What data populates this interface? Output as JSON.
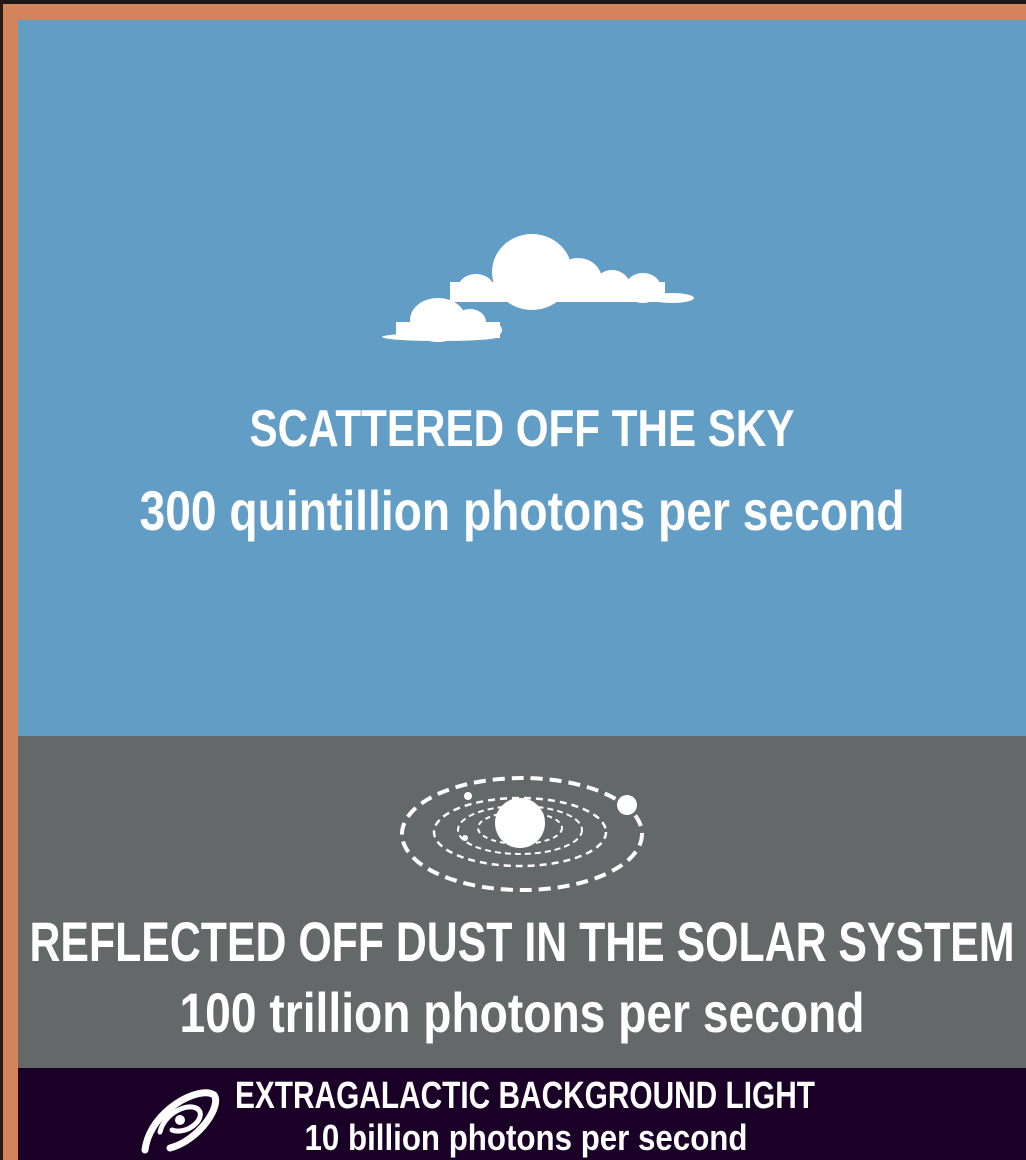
{
  "panels": [
    {
      "title": "SCATTERED OFF THE SKY",
      "text": "300 quintillion photons per second"
    },
    {
      "title": "REFLECTED OFF DUST IN THE SOLAR SYSTEM",
      "text": "100 trillion photons per second"
    },
    {
      "title": "EXTRAGALACTIC BACKGROUND LIGHT",
      "text": "10 billion photons per second"
    }
  ]
}
